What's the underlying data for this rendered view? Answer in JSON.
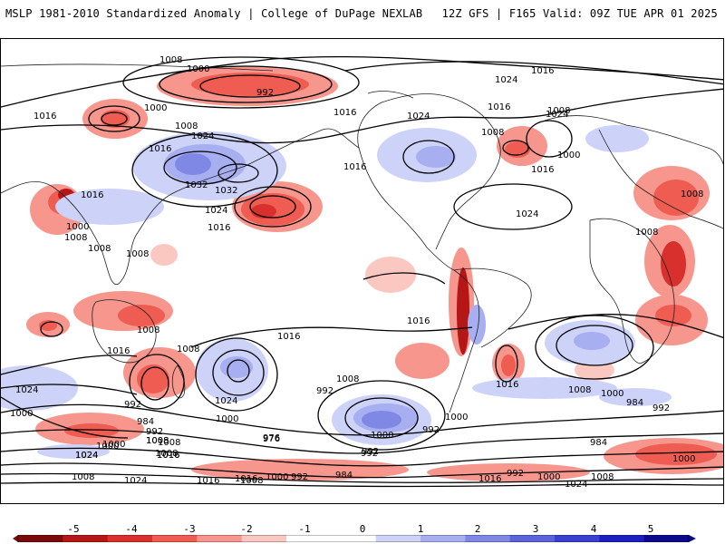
{
  "header": {
    "left_title": "MSLP 1981-2010 Standardized Anomaly | College of DuPage NEXLAB",
    "right_title": "12Z GFS | F165 Valid: 09Z TUE APR 01 2025"
  },
  "map": {
    "isobar_labels": [
      "1008",
      "1000",
      "992",
      "1016",
      "1000",
      "1008",
      "1024",
      "1032",
      "1032",
      "1024",
      "1016",
      "1016",
      "1000",
      "1008",
      "1008",
      "1008",
      "1016",
      "1016",
      "1024",
      "1024",
      "1008",
      "1016",
      "1016",
      "1008",
      "1000",
      "1016",
      "1024",
      "1016",
      "1024",
      "1008",
      "1008",
      "1008",
      "1008",
      "1008",
      "1016",
      "1024",
      "992",
      "1000",
      "1008",
      "992",
      "992",
      "1000",
      "1000",
      "976",
      "984",
      "992",
      "1000",
      "1008",
      "1016",
      "1024",
      "1016",
      "1024",
      "1008",
      "1000",
      "992",
      "1016",
      "1016",
      "1008",
      "1000",
      "984",
      "992",
      "1000",
      "984",
      "992",
      "1000",
      "1008",
      "1024",
      "1016",
      "1008",
      "1016",
      "1024",
      "1016",
      "1008",
      "1000",
      "992",
      "984",
      "976",
      "992",
      "1000",
      "1008",
      "1016",
      "1024"
    ]
  },
  "colorbar": {
    "tick_labels": [
      "-5",
      "-4",
      "-3",
      "-2",
      "-1",
      "0",
      "1",
      "2",
      "3",
      "4",
      "5"
    ],
    "min": -5,
    "max": 5,
    "colors": [
      "#7a0a0a",
      "#b51616",
      "#d8302c",
      "#ef5c52",
      "#f7968d",
      "#fbc8c1",
      "#ffffff",
      "#ffffff",
      "#cdd2f8",
      "#a7aff1",
      "#8088e6",
      "#5b62db",
      "#3a3fd0",
      "#1c1fbf",
      "#0a0a8a"
    ]
  }
}
